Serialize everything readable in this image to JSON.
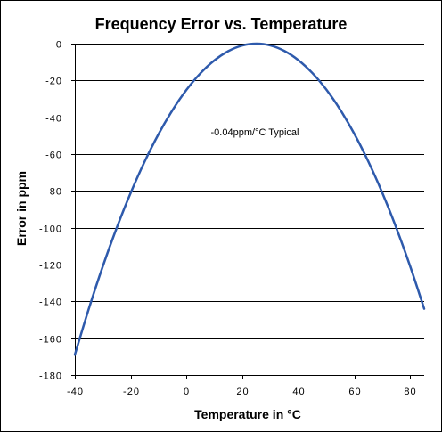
{
  "chart_data": {
    "type": "line",
    "title": "Frequency Error vs. Temperature",
    "xlabel": "Temperature in °C",
    "ylabel": "Error in ppm",
    "annotation": "-0.04ppm/°C Typical",
    "xlim": [
      -40,
      85
    ],
    "ylim": [
      -180,
      0
    ],
    "x_ticks": [
      -40,
      -20,
      0,
      20,
      40,
      60,
      80
    ],
    "y_ticks": [
      0,
      -20,
      -40,
      -60,
      -80,
      -100,
      -120,
      -140,
      -160,
      -180
    ],
    "x_tick_labels": [
      "-40",
      "-20",
      "0",
      "20",
      "40",
      "60",
      "80"
    ],
    "y_tick_labels": [
      "0",
      "-20",
      "-40",
      "-60",
      "-80",
      "-100",
      "-120",
      "-140",
      "-160",
      "-180"
    ],
    "grid": "horizontal",
    "series": [
      {
        "color": "#2E5AAC",
        "x": [
          -40,
          -35,
          -30,
          -25,
          -20,
          -15,
          -10,
          -5,
          0,
          5,
          10,
          15,
          20,
          25,
          30,
          35,
          40,
          45,
          50,
          55,
          60,
          65,
          70,
          75,
          80,
          85
        ],
        "values": [
          -169,
          -144,
          -121,
          -100,
          -81,
          -64,
          -49,
          -36,
          -25,
          -16,
          -9,
          -4,
          -1,
          0,
          -1,
          -4,
          -9,
          -16,
          -25,
          -36,
          -49,
          -64,
          -81,
          -100,
          -121,
          -144
        ]
      }
    ]
  }
}
